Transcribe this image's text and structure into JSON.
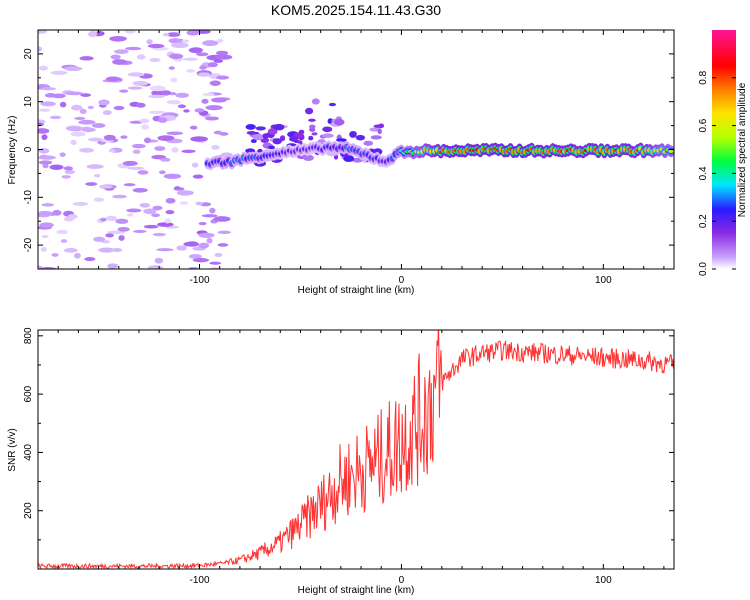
{
  "title": "KOM5.2025.154.11.43.G30",
  "chart_data": [
    {
      "type": "heatmap",
      "xlabel": "Height of straight line (km)",
      "ylabel": "Frequency (Hz)",
      "xlim": [
        -180,
        135
      ],
      "ylim": [
        -25,
        25
      ],
      "xticks": [
        -100,
        0,
        100
      ],
      "yticks": [
        -20,
        -10,
        0,
        10,
        20
      ],
      "colorbar": {
        "label": "Normalized spectral amplitude",
        "range": [
          0,
          1
        ],
        "ticks": [
          0.0,
          0.2,
          0.4,
          0.6,
          0.8
        ],
        "colormap": [
          "#ffffff",
          "#c9a0ff",
          "#8a2be2",
          "#2a1bff",
          "#00e5ff",
          "#00ff40",
          "#b4ff00",
          "#ffe600",
          "#ff7f00",
          "#ff0000",
          "#ff1493"
        ]
      },
      "ridge": [
        {
          "x": -95,
          "f": -2.8,
          "a": 0.3
        },
        {
          "x": -85,
          "f": -2.6,
          "a": 0.35
        },
        {
          "x": -75,
          "f": -1.8,
          "a": 0.35
        },
        {
          "x": -65,
          "f": -1.0,
          "a": 0.3
        },
        {
          "x": -55,
          "f": -0.5,
          "a": 0.25
        },
        {
          "x": -45,
          "f": 0.0,
          "a": 0.25
        },
        {
          "x": -35,
          "f": 0.5,
          "a": 0.3
        },
        {
          "x": -25,
          "f": 0.0,
          "a": 0.35
        },
        {
          "x": -15,
          "f": -1.5,
          "a": 0.3
        },
        {
          "x": -8,
          "f": -2.5,
          "a": 0.25
        },
        {
          "x": 0,
          "f": -0.5,
          "a": 0.45
        },
        {
          "x": 10,
          "f": -0.3,
          "a": 0.7
        },
        {
          "x": 20,
          "f": -0.3,
          "a": 0.85
        },
        {
          "x": 40,
          "f": -0.2,
          "a": 0.88
        },
        {
          "x": 60,
          "f": -0.2,
          "a": 0.9
        },
        {
          "x": 80,
          "f": -0.3,
          "a": 0.85
        },
        {
          "x": 100,
          "f": -0.2,
          "a": 0.88
        },
        {
          "x": 120,
          "f": -0.2,
          "a": 0.82
        },
        {
          "x": 133,
          "f": -0.3,
          "a": 0.6
        }
      ]
    },
    {
      "type": "line",
      "xlabel": "Height of straight line (km)",
      "ylabel": "SNR (v/v)",
      "xlim": [
        -180,
        135
      ],
      "ylim": [
        0,
        820
      ],
      "xticks": [
        -100,
        0,
        100
      ],
      "yticks": [
        200,
        400,
        600,
        800
      ],
      "series": [
        {
          "color": "#ff3333",
          "x": [
            -180,
            -160,
            -140,
            -120,
            -100,
            -90,
            -80,
            -70,
            -60,
            -50,
            -40,
            -30,
            -20,
            -10,
            0,
            10,
            20,
            30,
            40,
            50,
            60,
            70,
            80,
            90,
            100,
            110,
            120,
            135
          ],
          "values": [
            10,
            10,
            10,
            10,
            12,
            18,
            30,
            55,
            90,
            150,
            220,
            300,
            340,
            380,
            440,
            520,
            640,
            720,
            740,
            750,
            745,
            740,
            735,
            730,
            725,
            720,
            715,
            700
          ]
        }
      ]
    }
  ]
}
